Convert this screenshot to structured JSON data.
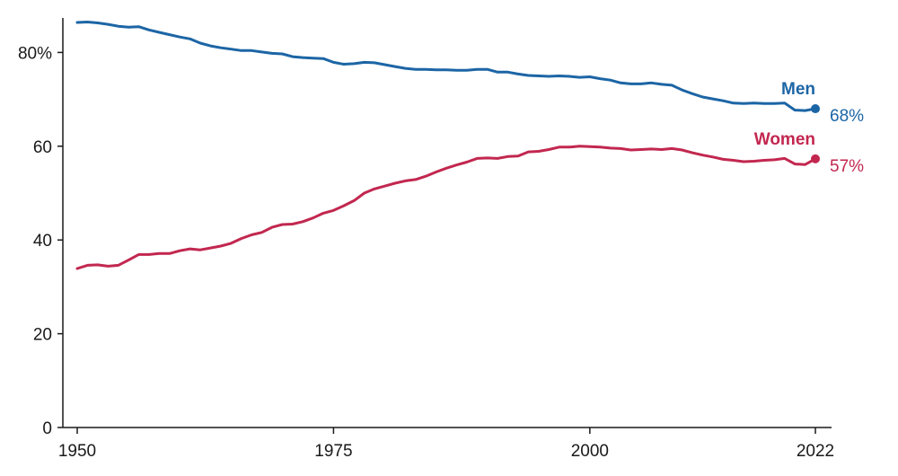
{
  "chart_data": {
    "type": "line",
    "title": "",
    "xlabel": "",
    "ylabel": "",
    "xlim": [
      1950,
      2022
    ],
    "ylim": [
      0,
      86
    ],
    "grid": false,
    "legend": "direct labels at line ends",
    "x_ticks": [
      1950,
      1975,
      2000,
      2022
    ],
    "y_ticks": [
      0,
      20,
      40,
      60,
      80
    ],
    "y_tick_labels": [
      "0",
      "20",
      "40",
      "60",
      "80%"
    ],
    "x_tick_labels": [
      "1950",
      "1975",
      "2000",
      "2022"
    ],
    "x": [
      1950,
      1951,
      1952,
      1953,
      1954,
      1955,
      1956,
      1957,
      1958,
      1959,
      1960,
      1961,
      1962,
      1963,
      1964,
      1965,
      1966,
      1967,
      1968,
      1969,
      1970,
      1971,
      1972,
      1973,
      1974,
      1975,
      1976,
      1977,
      1978,
      1979,
      1980,
      1981,
      1982,
      1983,
      1984,
      1985,
      1986,
      1987,
      1988,
      1989,
      1990,
      1991,
      1992,
      1993,
      1994,
      1995,
      1996,
      1997,
      1998,
      1999,
      2000,
      2001,
      2002,
      2003,
      2004,
      2005,
      2006,
      2007,
      2008,
      2009,
      2010,
      2011,
      2012,
      2013,
      2014,
      2015,
      2016,
      2017,
      2018,
      2019,
      2020,
      2021,
      2022
    ],
    "series": [
      {
        "name": "Men",
        "color": "#1c65a5",
        "end_label": "68%",
        "values": [
          86.4,
          86.5,
          86.3,
          86.0,
          85.6,
          85.4,
          85.5,
          84.8,
          84.3,
          83.8,
          83.3,
          82.9,
          82.0,
          81.4,
          81.0,
          80.7,
          80.4,
          80.4,
          80.1,
          79.8,
          79.7,
          79.1,
          78.9,
          78.8,
          78.7,
          77.9,
          77.5,
          77.6,
          77.9,
          77.8,
          77.4,
          77.0,
          76.6,
          76.4,
          76.4,
          76.3,
          76.3,
          76.2,
          76.2,
          76.4,
          76.4,
          75.8,
          75.8,
          75.4,
          75.1,
          75.0,
          74.9,
          75.0,
          74.9,
          74.7,
          74.8,
          74.4,
          74.1,
          73.5,
          73.3,
          73.3,
          73.5,
          73.2,
          73.0,
          72.0,
          71.2,
          70.5,
          70.1,
          69.7,
          69.2,
          69.1,
          69.2,
          69.1,
          69.1,
          69.2,
          67.7,
          67.6,
          68.0
        ]
      },
      {
        "name": "Women",
        "color": "#c2274f",
        "end_label": "57%",
        "values": [
          33.9,
          34.6,
          34.7,
          34.4,
          34.6,
          35.7,
          36.9,
          36.9,
          37.1,
          37.1,
          37.7,
          38.1,
          37.9,
          38.3,
          38.7,
          39.3,
          40.3,
          41.1,
          41.6,
          42.7,
          43.3,
          43.4,
          43.9,
          44.7,
          45.7,
          46.3,
          47.3,
          48.4,
          50.0,
          50.9,
          51.5,
          52.1,
          52.6,
          52.9,
          53.6,
          54.5,
          55.3,
          56.0,
          56.6,
          57.4,
          57.5,
          57.4,
          57.8,
          57.9,
          58.8,
          58.9,
          59.3,
          59.8,
          59.8,
          60.0,
          59.9,
          59.8,
          59.6,
          59.5,
          59.2,
          59.3,
          59.4,
          59.3,
          59.5,
          59.2,
          58.6,
          58.1,
          57.7,
          57.2,
          57.0,
          56.7,
          56.8,
          57.0,
          57.1,
          57.4,
          56.2,
          56.1,
          57.3
        ]
      }
    ]
  }
}
